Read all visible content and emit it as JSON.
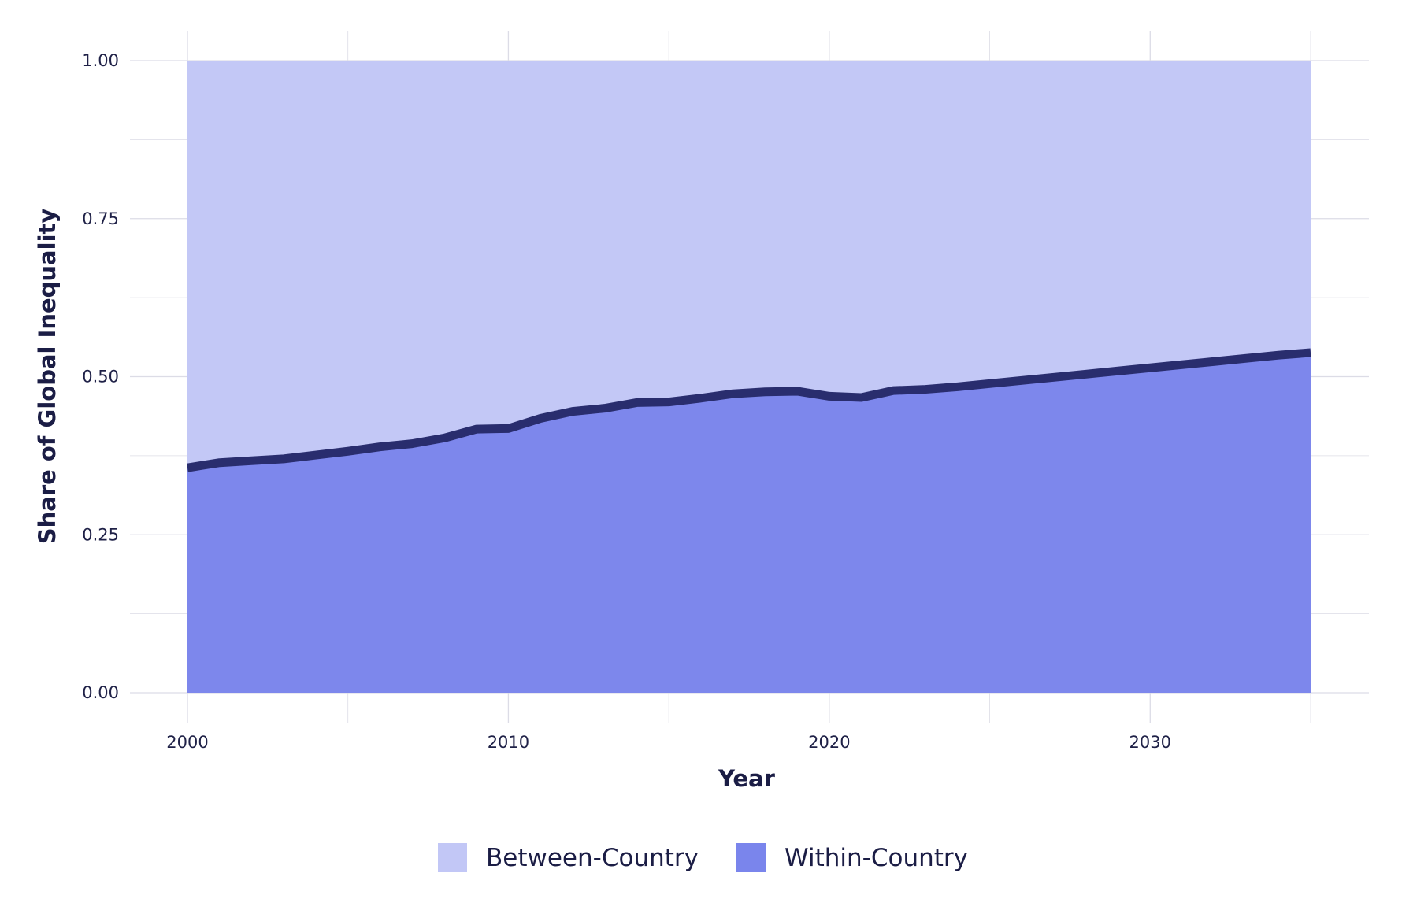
{
  "chart_data": {
    "type": "area",
    "stacked": true,
    "title": "",
    "xlabel": "Year",
    "ylabel": "Share of Global Inequality",
    "xlim": [
      2000,
      2035
    ],
    "ylim": [
      0,
      1
    ],
    "x_ticks": [
      2000,
      2010,
      2020,
      2030
    ],
    "y_ticks": [
      0.0,
      0.25,
      0.5,
      0.75,
      1.0
    ],
    "y_tick_labels": [
      "0.00",
      "0.25",
      "0.50",
      "0.75",
      "1.00"
    ],
    "grid": true,
    "legend": "bottom",
    "x": [
      2000,
      2001,
      2002,
      2003,
      2004,
      2005,
      2006,
      2007,
      2008,
      2009,
      2010,
      2011,
      2012,
      2013,
      2014,
      2015,
      2016,
      2017,
      2018,
      2019,
      2020,
      2021,
      2022,
      2023,
      2024,
      2025,
      2026,
      2027,
      2028,
      2029,
      2030,
      2031,
      2032,
      2033,
      2034,
      2035
    ],
    "series": [
      {
        "name": "Within-Country",
        "color": "#7a85ec",
        "values": [
          0.356,
          0.364,
          0.367,
          0.37,
          0.376,
          0.382,
          0.389,
          0.394,
          0.403,
          0.417,
          0.418,
          0.434,
          0.445,
          0.45,
          0.459,
          0.46,
          0.466,
          0.473,
          0.476,
          0.477,
          0.469,
          0.467,
          0.478,
          0.48,
          0.484,
          0.489,
          0.494,
          0.499,
          0.504,
          0.509,
          0.514,
          0.519,
          0.524,
          0.529,
          0.534,
          0.538
        ]
      },
      {
        "name": "Between-Country",
        "color": "#c2c7f6",
        "values": [
          0.644,
          0.636,
          0.633,
          0.63,
          0.624,
          0.618,
          0.611,
          0.606,
          0.597,
          0.583,
          0.582,
          0.566,
          0.555,
          0.55,
          0.541,
          0.54,
          0.534,
          0.527,
          0.524,
          0.523,
          0.531,
          0.533,
          0.522,
          0.52,
          0.516,
          0.511,
          0.506,
          0.501,
          0.496,
          0.491,
          0.486,
          0.481,
          0.476,
          0.471,
          0.466,
          0.462
        ]
      }
    ],
    "line_color": "#292d6e",
    "legend_order": [
      "Between-Country",
      "Within-Country"
    ]
  }
}
